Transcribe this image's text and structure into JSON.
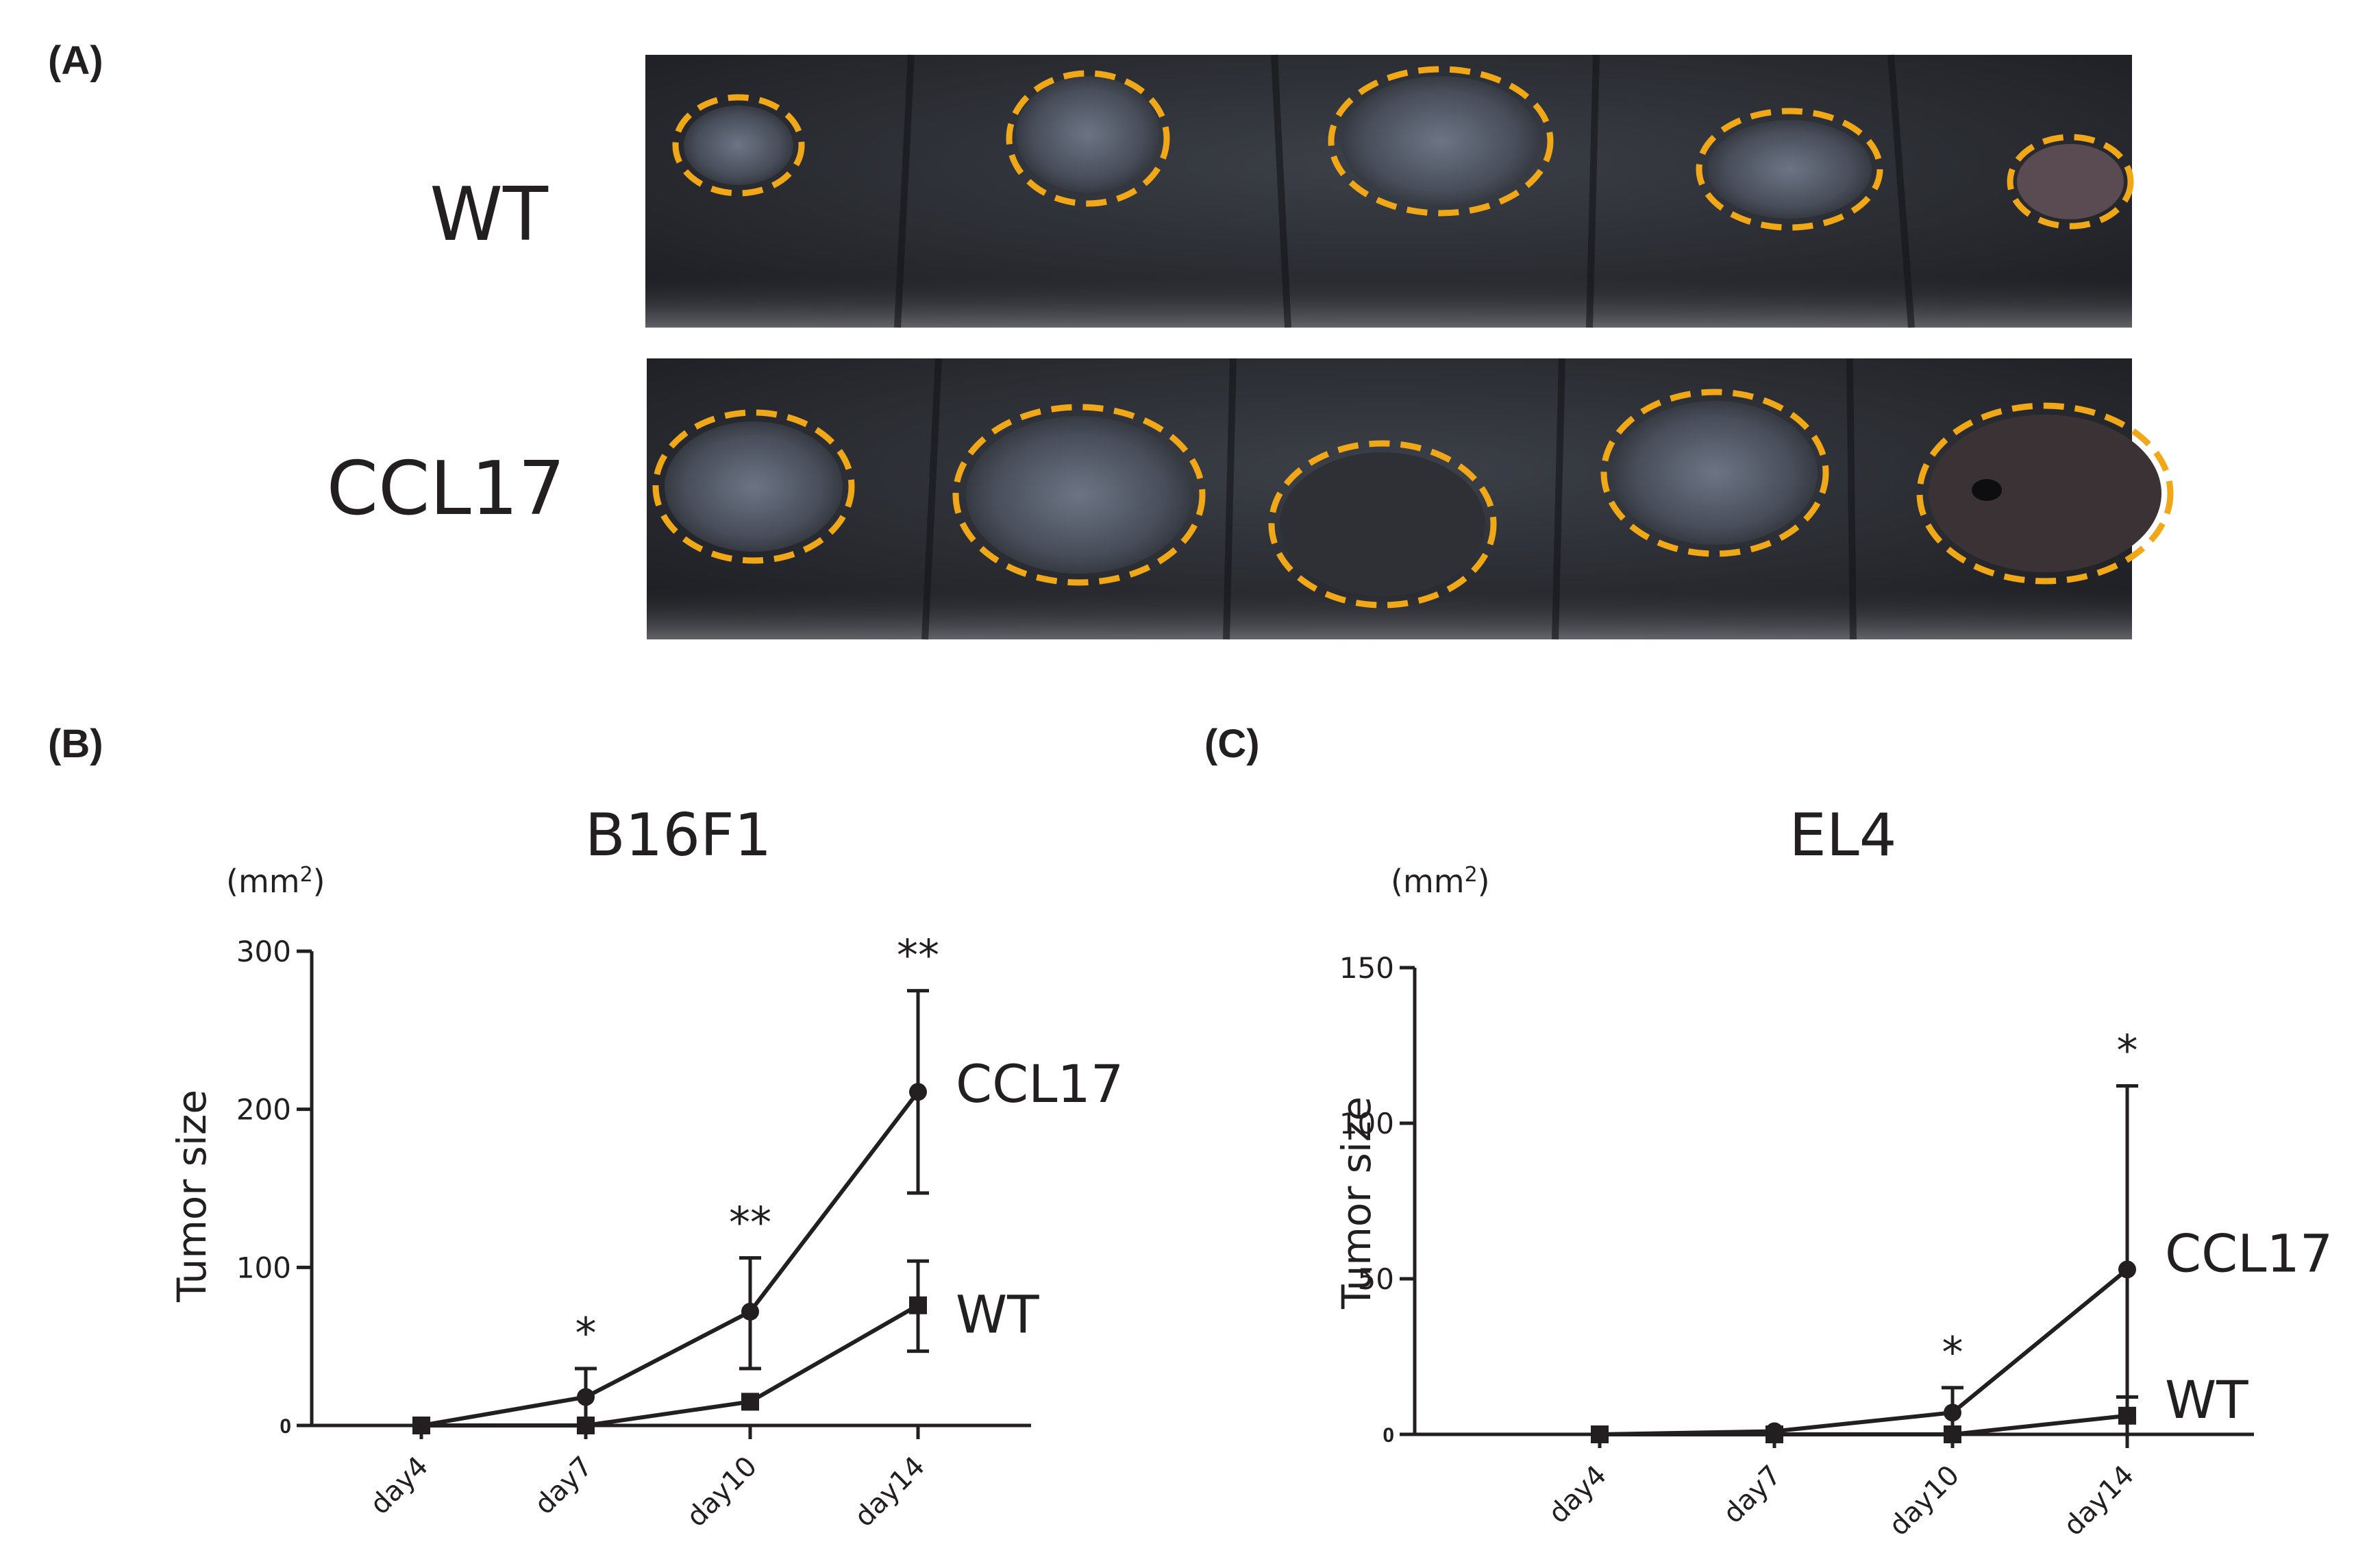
{
  "panel_a": {
    "letter": "(A)",
    "rows": [
      {
        "label": "WT",
        "tumor_marker_count": 5
      },
      {
        "label": "CCL17",
        "tumor_marker_count": 5
      }
    ],
    "colors": {
      "fur": "#2b2c30",
      "fur_light": "#4f545e",
      "tumor": "#5f6674",
      "outline": "#f0a818",
      "background": "#ffffff"
    }
  },
  "chart_data": [
    {
      "panel": "(B)",
      "type": "line",
      "title": "B16F1",
      "unit": "(mm",
      "unit_sup": "2",
      "unit_close": ")",
      "xlabel": "",
      "ylabel": "Tumor size",
      "categories": [
        "day4",
        "day7",
        "day10",
        "day14"
      ],
      "ylim": [
        0,
        300
      ],
      "yticks": [
        0,
        100,
        200,
        300
      ],
      "yticklabels": [
        "0",
        "100",
        "200",
        "300"
      ],
      "grid": false,
      "legend": "inline labels at line ends",
      "series": [
        {
          "name": "CCL17",
          "marker": "circle",
          "values": [
            0,
            18,
            72,
            211
          ],
          "err_upper": [
            0,
            36,
            106,
            275
          ],
          "err_lower": [
            0,
            0,
            36,
            147
          ],
          "error_bars": [
            false,
            true,
            true,
            true
          ],
          "label_y": 216
        },
        {
          "name": "WT",
          "marker": "square",
          "values": [
            0,
            0,
            15,
            76
          ],
          "err_upper": [
            0,
            0,
            15,
            104
          ],
          "err_lower": [
            0,
            0,
            15,
            47
          ],
          "error_bars": [
            false,
            false,
            false,
            true
          ],
          "label_y": 70
        }
      ],
      "annotations": [
        {
          "category": "day7",
          "text": "*",
          "y": 36
        },
        {
          "category": "day10",
          "text": "**",
          "y": 106
        },
        {
          "category": "day14",
          "text": "**",
          "y": 275
        }
      ]
    },
    {
      "panel": "(C)",
      "type": "line",
      "title": "EL4",
      "unit": "(mm",
      "unit_sup": "2",
      "unit_close": ")",
      "xlabel": "",
      "ylabel": "Tumor size",
      "categories": [
        "day4",
        "day7",
        "day10",
        "day14"
      ],
      "ylim": [
        0,
        150
      ],
      "yticks": [
        0,
        50,
        100,
        150
      ],
      "yticklabels": [
        "0",
        "50",
        "100",
        "150"
      ],
      "grid": false,
      "legend": "inline labels at line ends",
      "series": [
        {
          "name": "CCL17",
          "marker": "circle",
          "values": [
            0,
            1,
            7,
            53
          ],
          "err_upper": [
            0,
            1,
            15,
            112
          ],
          "err_lower": [
            0,
            1,
            0,
            0
          ],
          "error_bars": [
            false,
            false,
            true,
            true
          ],
          "label_y": 58
        },
        {
          "name": "WT",
          "marker": "square",
          "values": [
            0,
            0,
            0,
            6
          ],
          "err_upper": [
            0,
            0,
            0,
            12
          ],
          "err_lower": [
            0,
            0,
            0,
            0
          ],
          "error_bars": [
            false,
            false,
            false,
            true
          ],
          "label_y": 11
        }
      ],
      "annotations": [
        {
          "category": "day10",
          "text": "*",
          "y": 15
        },
        {
          "category": "day14",
          "text": "*",
          "y": 112
        }
      ]
    }
  ]
}
